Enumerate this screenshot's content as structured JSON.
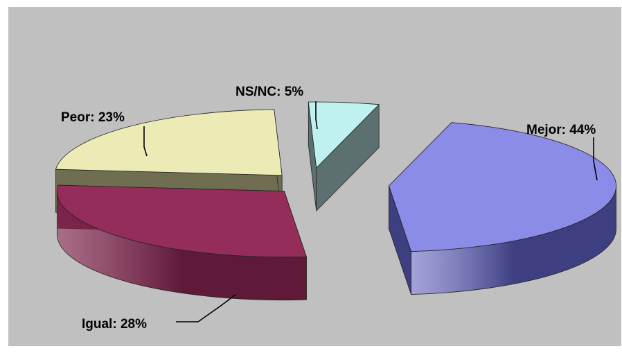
{
  "chart_data": {
    "type": "pie",
    "style": "3d-exploded",
    "slices": [
      {
        "label": "Mejor",
        "value": 44,
        "label_text": "Mejor: 44%",
        "top_color": "#8a8ce8",
        "side_color": "#3e3f80"
      },
      {
        "label": "Igual",
        "value": 28,
        "label_text": "Igual: 28%",
        "top_color": "#952d5a",
        "side_color": "#5e1a38"
      },
      {
        "label": "Peor",
        "value": 23,
        "label_text": "Peor: 23%",
        "top_color": "#ecebb6",
        "side_color": "#6f6e51"
      },
      {
        "label": "NS/NC",
        "value": 5,
        "label_text": "NS/NC: 5%",
        "top_color": "#c0f1f1",
        "side_color": "#5c7070"
      }
    ],
    "background_color": "#c0c0c0",
    "legend": "none"
  }
}
